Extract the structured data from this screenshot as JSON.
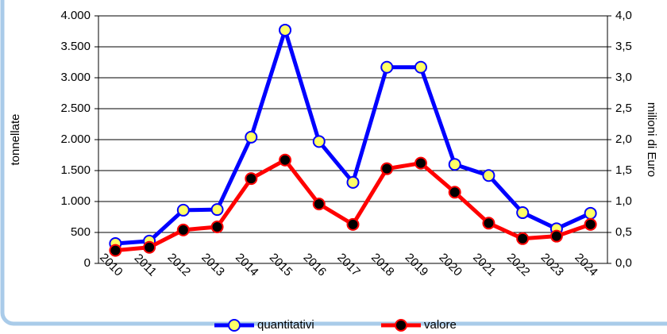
{
  "chart_data": {
    "type": "line",
    "y_label": "tonnellate",
    "y2_label": "milioni di Euro",
    "categories": [
      "2010",
      "2011",
      "2012",
      "2013",
      "2014",
      "2015",
      "2016",
      "2017",
      "2018",
      "2019",
      "2020",
      "2021",
      "2022",
      "2023",
      "2024"
    ],
    "series": [
      {
        "name": "quantitativi",
        "color": "#0000ff",
        "marker_color": "#ffff66",
        "values": [
          320,
          360,
          860,
          870,
          2040,
          3770,
          1970,
          1310,
          3170,
          3170,
          1600,
          1420,
          820,
          560,
          810
        ]
      },
      {
        "name": "valore",
        "color": "#ff0000",
        "marker_color": "#000000",
        "axis": "y2",
        "values": [
          0.21,
          0.26,
          0.54,
          0.59,
          1.37,
          1.67,
          0.96,
          0.63,
          1.53,
          1.62,
          1.15,
          0.65,
          0.4,
          0.44,
          0.63
        ]
      }
    ],
    "ylim": [
      0,
      4000
    ],
    "yticks": [
      0,
      500,
      {
        "value": 1000,
        "label": "1.000"
      },
      {
        "value": 1500,
        "label": "1.500"
      },
      {
        "value": 2000,
        "label": "2.000"
      },
      {
        "value": 2500,
        "label": "2.500"
      },
      {
        "value": 3000,
        "label": "3.000"
      },
      {
        "value": 3500,
        "label": "3.500"
      },
      {
        "value": 4000,
        "label": "4.000"
      }
    ],
    "y2lim": [
      0,
      4
    ],
    "y2ticks": [
      {
        "value": 0,
        "label": "0,0"
      },
      {
        "value": 0.5,
        "label": "0,5"
      },
      {
        "value": 1,
        "label": "1,0"
      },
      {
        "value": 1.5,
        "label": "1,5"
      },
      {
        "value": 2,
        "label": "2,0"
      },
      {
        "value": 2.5,
        "label": "2,5"
      },
      {
        "value": 3,
        "label": "3,0"
      },
      {
        "value": 3.5,
        "label": "3,5"
      },
      {
        "value": 4,
        "label": "4,0"
      }
    ],
    "grid": true,
    "legend": "bottom"
  }
}
